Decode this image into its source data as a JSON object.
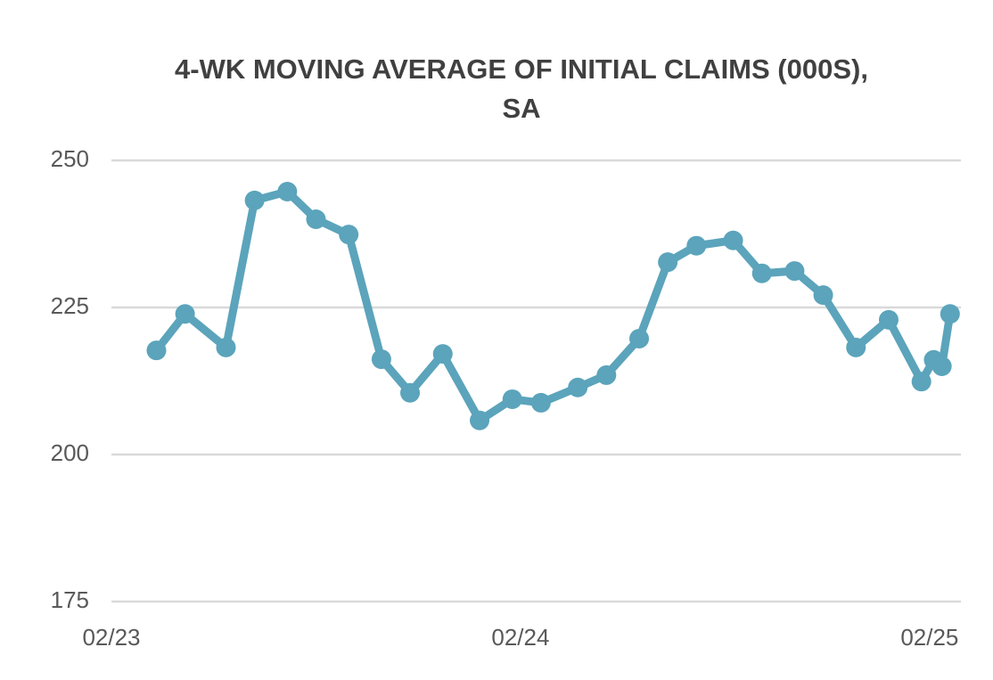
{
  "chart_data": {
    "type": "line",
    "title": "4-WK MOVING AVERAGE OF INITIAL CLAIMS (000S), SA",
    "x": [
      2023.19,
      2023.26,
      2023.36,
      2023.43,
      2023.51,
      2023.58,
      2023.66,
      2023.74,
      2023.81,
      2023.89,
      2023.98,
      2024.06,
      2024.13,
      2024.22,
      2024.29,
      2024.37,
      2024.44,
      2024.51,
      2024.6,
      2024.67,
      2024.75,
      2024.82,
      2024.9,
      2024.98,
      2025.06,
      2025.09,
      2025.11,
      2025.13
    ],
    "values": [
      217.7,
      223.9,
      218.2,
      243.2,
      244.7,
      240.0,
      237.4,
      216.2,
      210.5,
      217.1,
      205.8,
      209.4,
      208.8,
      211.4,
      213.5,
      219.7,
      232.7,
      235.5,
      236.4,
      230.8,
      231.2,
      227.1,
      218.2,
      222.9,
      212.4,
      216.1,
      215.0,
      223.9
    ],
    "color": "#5ba4bb",
    "xlim": [
      2023.08,
      2025.15
    ],
    "xticks": [
      {
        "value": 2023.08,
        "label": "02/23"
      },
      {
        "value": 2024.08,
        "label": "02/24"
      },
      {
        "value": 2025.08,
        "label": "02/25"
      }
    ],
    "ylim": [
      175,
      250
    ],
    "yticks": [
      175,
      200,
      225,
      250
    ],
    "grid": true
  }
}
